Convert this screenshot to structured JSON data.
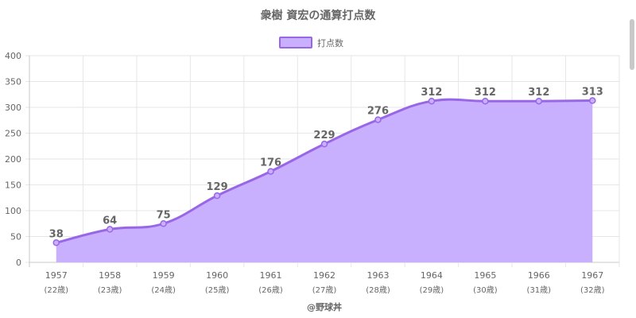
{
  "chart_data": {
    "type": "area",
    "title": "衆樹 資宏の通算打点数",
    "legend": {
      "position": "top",
      "label": "打点数"
    },
    "categories": [
      "1957",
      "1958",
      "1959",
      "1960",
      "1961",
      "1962",
      "1963",
      "1964",
      "1965",
      "1966",
      "1967"
    ],
    "categories_sub": [
      "(22歳)",
      "(23歳)",
      "(24歳)",
      "(25歳)",
      "(26歳)",
      "(27歳)",
      "(28歳)",
      "(29歳)",
      "(30歳)",
      "(31歳)",
      "(32歳)"
    ],
    "series": [
      {
        "name": "打点数",
        "values": [
          38,
          64,
          75,
          129,
          176,
          229,
          276,
          312,
          312,
          312,
          313
        ]
      }
    ],
    "ylim": [
      0,
      400
    ],
    "yticks": [
      0,
      50,
      100,
      150,
      200,
      250,
      300,
      350,
      400
    ],
    "grid": true,
    "colors": {
      "line": "#9966e6",
      "fill": "#c9b0ff",
      "grid": "#e6e6e6",
      "axis": "#c8c8c8"
    }
  },
  "footer": "@野球丼"
}
